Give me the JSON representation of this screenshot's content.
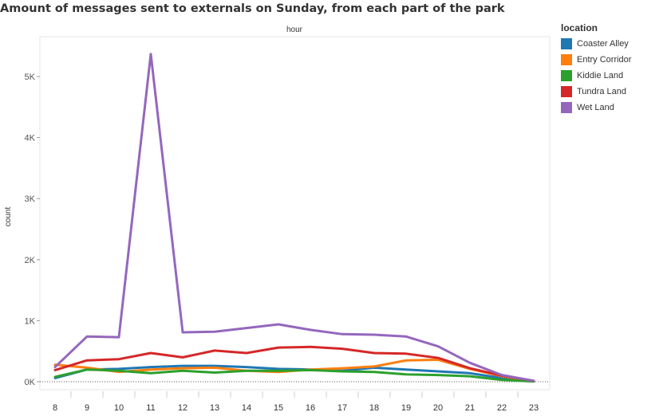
{
  "title": "Amount of messages sent to externals on Sunday, from each part of the park",
  "legend": {
    "title": "location",
    "items": [
      {
        "label": "Coaster Alley",
        "color": "#1f77b4"
      },
      {
        "label": "Entry Corridor",
        "color": "#ff7f0e"
      },
      {
        "label": "Kiddie Land",
        "color": "#2ca02c"
      },
      {
        "label": "Tundra Land",
        "color": "#d62728"
      },
      {
        "label": "Wet Land",
        "color": "#9467bd"
      }
    ]
  },
  "chart_data": {
    "type": "line",
    "xlabel": "hour",
    "ylabel": "count",
    "ylim": [
      0,
      5700
    ],
    "x": [
      8,
      9,
      10,
      11,
      12,
      13,
      14,
      15,
      16,
      17,
      18,
      19,
      20,
      21,
      22,
      23
    ],
    "yticks": [
      0,
      1000,
      2000,
      3000,
      4000,
      5000
    ],
    "ytick_labels": [
      "0K",
      "1K",
      "2K",
      "3K",
      "4K",
      "5K"
    ],
    "series": [
      {
        "name": "Coaster Alley",
        "color": "#1f77b4",
        "values": [
          60,
          200,
          210,
          240,
          260,
          260,
          240,
          210,
          200,
          180,
          230,
          200,
          170,
          140,
          60,
          5
        ]
      },
      {
        "name": "Entry Corridor",
        "color": "#ff7f0e",
        "values": [
          280,
          230,
          160,
          200,
          220,
          230,
          180,
          160,
          200,
          220,
          250,
          350,
          360,
          210,
          90,
          15
        ]
      },
      {
        "name": "Kiddie Land",
        "color": "#2ca02c",
        "values": [
          80,
          200,
          180,
          140,
          180,
          150,
          180,
          180,
          190,
          170,
          160,
          120,
          110,
          90,
          30,
          5
        ]
      },
      {
        "name": "Tundra Land",
        "color": "#d62728",
        "values": [
          190,
          350,
          370,
          470,
          400,
          510,
          470,
          560,
          570,
          540,
          470,
          460,
          390,
          220,
          100,
          15
        ]
      },
      {
        "name": "Wet Land",
        "color": "#9467bd",
        "values": [
          240,
          740,
          730,
          5370,
          810,
          820,
          880,
          940,
          850,
          780,
          770,
          740,
          580,
          310,
          110,
          15
        ]
      }
    ]
  }
}
